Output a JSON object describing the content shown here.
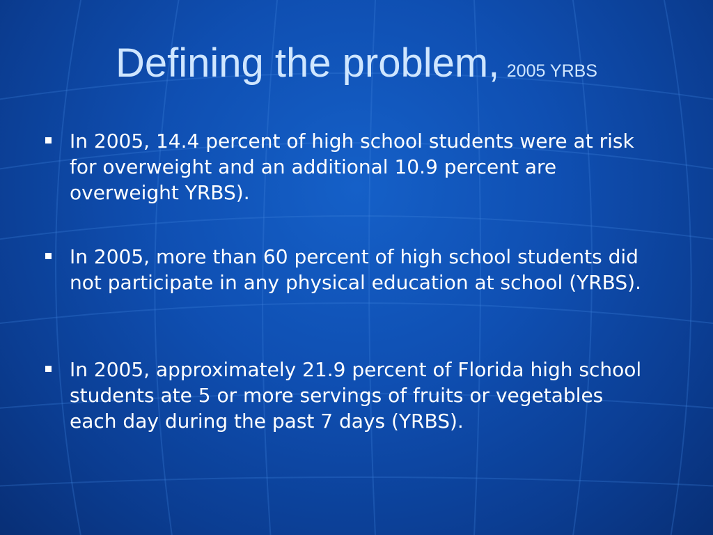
{
  "slide": {
    "title": "Defining the problem,",
    "title_suffix": "2005 YRBS",
    "bullets": [
      "In 2005, 14.4 percent of high school students were at risk for overweight and an additional 10.9 percent are overweight YRBS).",
      "In 2005, more than 60 percent of high school students did not participate in any physical education at school (YRBS).",
      "In 2005, approximately 21.9 percent of Florida high school students ate 5 or more servings of fruits or vegetables each day during the past 7 days (YRBS)."
    ]
  },
  "colors": {
    "background": "#0f4fb2",
    "title": "#cfe6ff",
    "body_text": "#ffffff",
    "bullet_marker": "#ffffff"
  }
}
